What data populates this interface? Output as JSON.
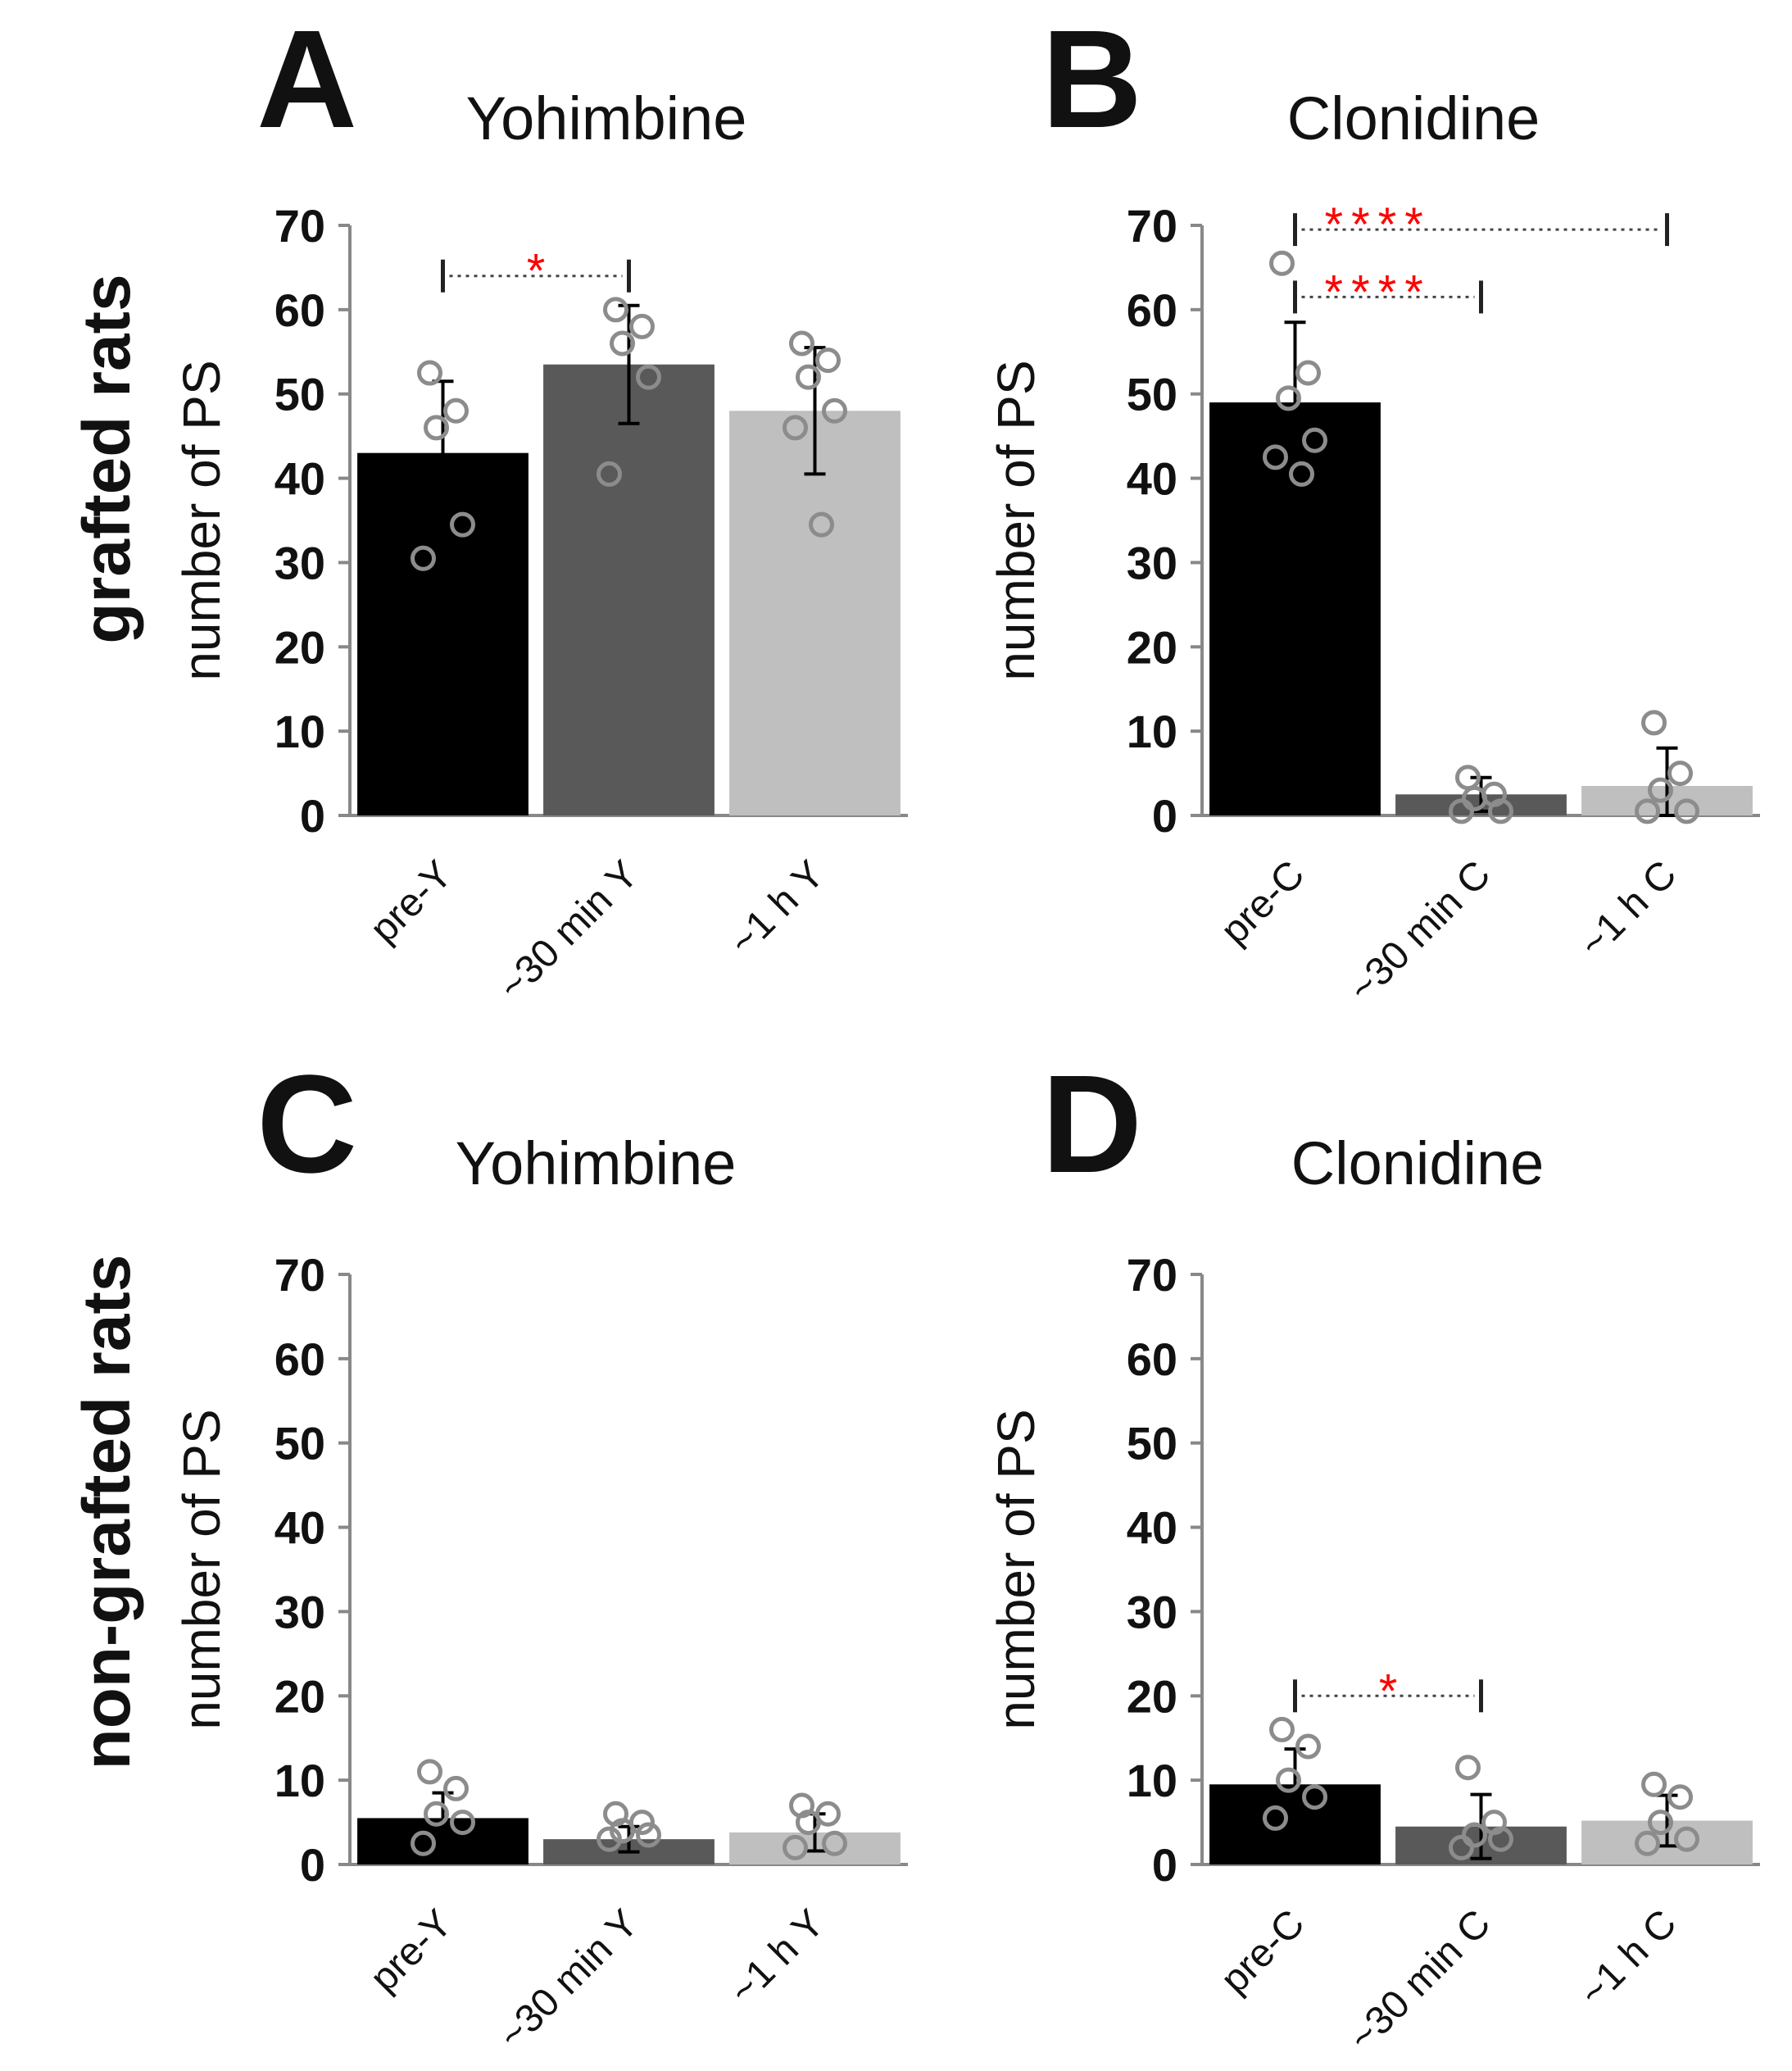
{
  "row_labels": [
    "grafted rats",
    "non-grafted rats"
  ],
  "chart_data": [
    {
      "panel": "A",
      "title": "Yohimbine",
      "type": "bar",
      "ylabel": "number of PS",
      "ylim": [
        0,
        70
      ],
      "yticks": [
        0,
        10,
        20,
        30,
        40,
        50,
        60,
        70
      ],
      "categories": [
        "pre-Y",
        "~30 min Y",
        "~1 h Y"
      ],
      "colors": [
        "#000000",
        "#595959",
        "#bfbfbf"
      ],
      "values": [
        43,
        53.5,
        48
      ],
      "errors": [
        8.5,
        7,
        7.5
      ],
      "points": [
        [
          52.5,
          48,
          46,
          34.5,
          30.5
        ],
        [
          60,
          58,
          56,
          52,
          40.5
        ],
        [
          56,
          54,
          52,
          48,
          46,
          34.5
        ]
      ],
      "significance": [
        {
          "from": 0,
          "to": 1,
          "level": 64,
          "label": "*"
        }
      ]
    },
    {
      "panel": "B",
      "title": "Clonidine",
      "type": "bar",
      "ylabel": "number of PS",
      "ylim": [
        0,
        70
      ],
      "yticks": [
        0,
        10,
        20,
        30,
        40,
        50,
        60,
        70
      ],
      "categories": [
        "pre-C",
        "~30 min C",
        "~1 h C"
      ],
      "colors": [
        "#000000",
        "#595959",
        "#bfbfbf"
      ],
      "values": [
        49,
        2.5,
        3.5
      ],
      "errors": [
        9.5,
        2,
        4.5
      ],
      "points": [
        [
          65.5,
          52.5,
          49.5,
          44.5,
          42.5,
          40.5
        ],
        [
          4.5,
          2.5,
          2,
          0.5,
          0.5
        ],
        [
          11,
          5,
          3,
          0.5,
          0.5
        ]
      ],
      "significance": [
        {
          "from": 0,
          "to": 2,
          "level": 69.5,
          "label": "****"
        },
        {
          "from": 0,
          "to": 1,
          "level": 61.5,
          "label": "****"
        }
      ]
    },
    {
      "panel": "C",
      "title": "Yohimbine",
      "type": "bar",
      "ylabel": "number of PS",
      "ylim": [
        0,
        70
      ],
      "yticks": [
        0,
        10,
        20,
        30,
        40,
        50,
        60,
        70
      ],
      "categories": [
        "pre-Y",
        "~30 min Y",
        "~1 h Y"
      ],
      "colors": [
        "#000000",
        "#595959",
        "#bfbfbf"
      ],
      "values": [
        5.5,
        3,
        3.8
      ],
      "errors": [
        3,
        1.5,
        2.2
      ],
      "points": [
        [
          11,
          9,
          6,
          5,
          2.5
        ],
        [
          6,
          5,
          4,
          3.5,
          3
        ],
        [
          7,
          6,
          5,
          2.5,
          2
        ]
      ],
      "significance": []
    },
    {
      "panel": "D",
      "title": "Clonidine",
      "type": "bar",
      "ylabel": "number of PS",
      "ylim": [
        0,
        70
      ],
      "yticks": [
        0,
        10,
        20,
        30,
        40,
        50,
        60,
        70
      ],
      "categories": [
        "pre-C",
        "~30 min C",
        "~1 h C"
      ],
      "colors": [
        "#000000",
        "#595959",
        "#bfbfbf"
      ],
      "values": [
        9.5,
        4.5,
        5.2
      ],
      "errors": [
        4.2,
        3.8,
        3
      ],
      "points": [
        [
          16,
          14,
          10,
          8,
          5.5
        ],
        [
          11.5,
          5,
          3.5,
          3,
          2
        ],
        [
          9.5,
          8,
          5,
          3,
          2.5
        ]
      ],
      "significance": [
        {
          "from": 0,
          "to": 1,
          "level": 20,
          "label": "*"
        }
      ]
    }
  ]
}
